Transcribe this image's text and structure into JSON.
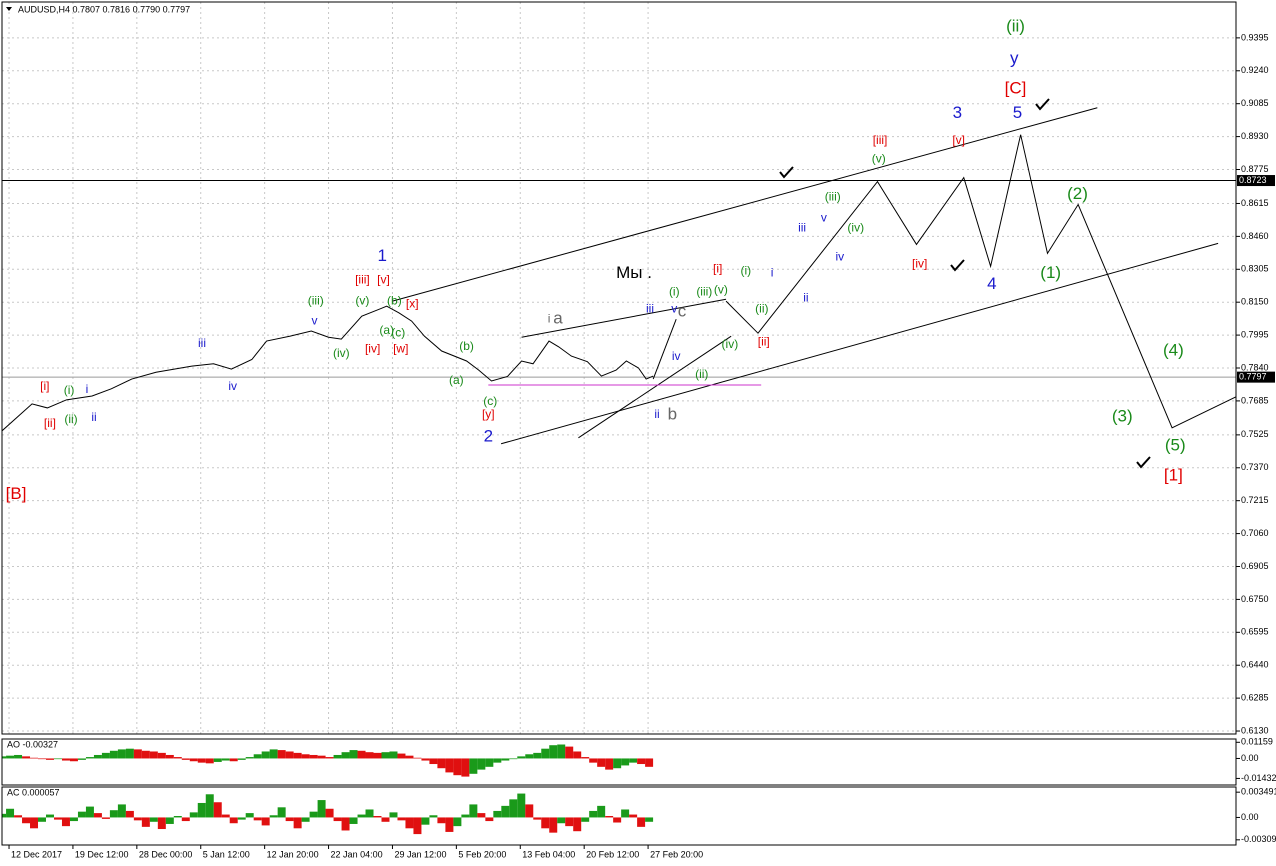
{
  "chart_data": [
    {
      "type": "line",
      "title": "AUDUSD,H4  0.7807 0.7816 0.7790 0.7797",
      "xlim": [
        -0.11,
        19.2
      ],
      "xticks": [
        {
          "value": 0,
          "label": "12 Dec 2017"
        },
        {
          "value": 1,
          "label": "19 Dec 12:00"
        },
        {
          "value": 2,
          "label": "28 Dec 00:00"
        },
        {
          "value": 3,
          "label": "5 Jan 12:00"
        },
        {
          "value": 4,
          "label": "12 Jan 20:00"
        },
        {
          "value": 5,
          "label": "22 Jan 04:00"
        },
        {
          "value": 6,
          "label": "29 Jan 12:00"
        },
        {
          "value": 7,
          "label": "5 Feb 20:00"
        },
        {
          "value": 8,
          "label": "13 Feb 04:00"
        },
        {
          "value": 9,
          "label": "20 Feb 12:00"
        },
        {
          "value": 10,
          "label": "27 Feb 20:00"
        }
      ],
      "ylim": [
        0.6116,
        0.9564
      ],
      "yticks": [
        0.9395,
        {
          "value": 0.924,
          "label": "0.9240"
        },
        0.9085,
        {
          "value": 0.893,
          "label": "0.8930"
        },
        0.8775,
        0.8615,
        {
          "value": 0.846,
          "label": "0.8460"
        },
        0.8305,
        {
          "value": 0.815,
          "label": "0.8150"
        },
        0.7995,
        {
          "value": 0.784,
          "label": "0.7840"
        },
        0.7685,
        0.7525,
        {
          "value": 0.737,
          "label": "0.7370"
        },
        0.7215,
        {
          "value": 0.706,
          "label": "0.7060"
        },
        0.6905,
        {
          "value": 0.675,
          "label": "0.6750"
        },
        0.6595,
        {
          "value": 0.644,
          "label": "0.6440"
        },
        0.6285,
        {
          "value": 0.613,
          "label": "0.6130"
        }
      ],
      "grid": true,
      "series": [
        {
          "color": "#000000",
          "x": [
            -0.11,
            0.36,
            0.6,
            0.9,
            1.3,
            1.6,
            1.92,
            2.3,
            2.86,
            3.2,
            3.48,
            3.8,
            4.03,
            4.4,
            4.73,
            5.0,
            5.2,
            5.52,
            5.91,
            6.1,
            6.3,
            6.5,
            6.77,
            7.16,
            7.35,
            7.55,
            7.8,
            8.02,
            8.2,
            8.45,
            8.6,
            8.8,
            9.05,
            9.27,
            9.5,
            9.66,
            9.85,
            9.97,
            10.08
          ],
          "values": [
            0.7544,
            0.7671,
            0.7652,
            0.769,
            0.7708,
            0.7742,
            0.7788,
            0.782,
            0.7849,
            0.786,
            0.7835,
            0.788,
            0.7967,
            0.799,
            0.8014,
            0.7985,
            0.7976,
            0.8084,
            0.8131,
            0.81,
            0.8061,
            0.799,
            0.792,
            0.7873,
            0.783,
            0.7779,
            0.78,
            0.7873,
            0.786,
            0.7967,
            0.794,
            0.7896,
            0.787,
            0.7802,
            0.783,
            0.7873,
            0.784,
            0.7788,
            0.7802
          ]
        },
        {
          "color": "#000000",
          "x": [
            10.08,
            10.44
          ],
          "values": [
            0.7788,
            0.807
          ]
        },
        {
          "color": "#000000",
          "x": [
            11.22,
            11.72,
            13.59,
            14.2,
            14.94,
            15.36,
            15.83,
            16.25,
            16.73,
            18.2,
            19.2
          ],
          "values": [
            0.8155,
            0.8004,
            0.8718,
            0.8422,
            0.8737,
            0.8319,
            0.8939,
            0.838,
            0.861,
            0.7558,
            0.7704
          ]
        },
        {
          "color": "#000000",
          "x": [
            6.0,
            17.03
          ],
          "values": [
            0.8155,
            0.9066
          ]
        },
        {
          "color": "#000000",
          "x": [
            7.7,
            18.92
          ],
          "values": [
            0.7483,
            0.8427
          ]
        },
        {
          "color": "#000000",
          "x": [
            8.02,
            11.22
          ],
          "values": [
            0.7985,
            0.8164
          ]
        },
        {
          "color": "#000000",
          "x": [
            8.91,
            11.3
          ],
          "values": [
            0.7511,
            0.799
          ]
        },
        {
          "color": "#cc33cc",
          "x": [
            7.5,
            11.77
          ],
          "values": [
            0.776,
            0.776
          ]
        }
      ],
      "hlines": [
        {
          "value": 0.8723,
          "color": "#000000"
        },
        {
          "value": 0.7797,
          "color": "#9a9a9a"
        }
      ],
      "annotations": [
        {
          "text": "[B]",
          "x": 0.11,
          "y": 0.7243,
          "color": "#e00000",
          "large": true
        },
        {
          "text": "[i]",
          "x": 0.56,
          "y": 0.7751,
          "color": "#e00000"
        },
        {
          "text": "[ii]",
          "x": 0.64,
          "y": 0.7577,
          "color": "#e00000"
        },
        {
          "text": "(i)",
          "x": 0.94,
          "y": 0.7732,
          "color": "#1a8a1a"
        },
        {
          "text": "(ii)",
          "x": 0.97,
          "y": 0.7596,
          "color": "#1a8a1a"
        },
        {
          "text": "i",
          "x": 1.22,
          "y": 0.7737,
          "color": "#1a1acc"
        },
        {
          "text": "ii",
          "x": 1.33,
          "y": 0.7605,
          "color": "#1a1acc"
        },
        {
          "text": "iii",
          "x": 3.02,
          "y": 0.7953,
          "color": "#1a1acc"
        },
        {
          "text": "iv",
          "x": 3.5,
          "y": 0.7751,
          "color": "#1a1acc"
        },
        {
          "text": "v",
          "x": 4.78,
          "y": 0.8061,
          "color": "#1a1acc"
        },
        {
          "text": "(iii)",
          "x": 4.8,
          "y": 0.8155,
          "color": "#1a8a1a"
        },
        {
          "text": "(iv)",
          "x": 5.2,
          "y": 0.7906,
          "color": "#1a8a1a"
        },
        {
          "text": "(v)",
          "x": 5.53,
          "y": 0.8155,
          "color": "#1a8a1a"
        },
        {
          "text": "1",
          "x": 5.84,
          "y": 0.8366,
          "color": "#1a1acc",
          "large": true
        },
        {
          "text": "[iii]",
          "x": 5.53,
          "y": 0.8253,
          "color": "#e00000"
        },
        {
          "text": "[v]",
          "x": 5.86,
          "y": 0.8253,
          "color": "#e00000"
        },
        {
          "text": "(a)",
          "x": 5.91,
          "y": 0.8014,
          "color": "#1a8a1a"
        },
        {
          "text": "(b)",
          "x": 6.03,
          "y": 0.8155,
          "color": "#1a8a1a"
        },
        {
          "text": "(c)",
          "x": 6.09,
          "y": 0.8004,
          "color": "#1a8a1a"
        },
        {
          "text": "[iv]",
          "x": 5.69,
          "y": 0.7929,
          "color": "#e00000"
        },
        {
          "text": "[w]",
          "x": 6.13,
          "y": 0.7929,
          "color": "#e00000"
        },
        {
          "text": "[x]",
          "x": 6.31,
          "y": 0.8141,
          "color": "#e00000"
        },
        {
          "text": "(b)",
          "x": 7.16,
          "y": 0.7939,
          "color": "#1a8a1a"
        },
        {
          "text": "(a)",
          "x": 7.0,
          "y": 0.7779,
          "color": "#1a8a1a"
        },
        {
          "text": "(c)",
          "x": 7.53,
          "y": 0.768,
          "color": "#1a8a1a"
        },
        {
          "text": "[y]",
          "x": 7.5,
          "y": 0.7619,
          "color": "#e00000"
        },
        {
          "text": "2",
          "x": 7.5,
          "y": 0.7516,
          "color": "#1a1acc",
          "large": true
        },
        {
          "text": "i",
          "x": 8.45,
          "y": 0.807,
          "color": "#666666"
        },
        {
          "text": "a",
          "x": 8.59,
          "y": 0.807,
          "color": "#666666",
          "large": true
        },
        {
          "text": "ii",
          "x": 10.14,
          "y": 0.7619,
          "color": "#1a1acc"
        },
        {
          "text": "b",
          "x": 10.38,
          "y": 0.7619,
          "color": "#666666",
          "large": true
        },
        {
          "text": "Мы .",
          "x": 9.78,
          "y": 0.8286,
          "color": "#000000",
          "large": true
        },
        {
          "text": "iii",
          "x": 10.03,
          "y": 0.8117,
          "color": "#1a1acc"
        },
        {
          "text": "v",
          "x": 10.41,
          "y": 0.8117,
          "color": "#1a1acc"
        },
        {
          "text": "c",
          "x": 10.53,
          "y": 0.8103,
          "color": "#666666",
          "large": true
        },
        {
          "text": "(i)",
          "x": 10.41,
          "y": 0.8197,
          "color": "#1a8a1a"
        },
        {
          "text": "(iii)",
          "x": 10.88,
          "y": 0.8197,
          "color": "#1a8a1a"
        },
        {
          "text": "(v)",
          "x": 11.14,
          "y": 0.8206,
          "color": "#1a8a1a"
        },
        {
          "text": "iv",
          "x": 10.44,
          "y": 0.7892,
          "color": "#1a1acc"
        },
        {
          "text": "(ii)",
          "x": 10.84,
          "y": 0.7807,
          "color": "#1a8a1a"
        },
        {
          "text": "(iv)",
          "x": 11.28,
          "y": 0.7948,
          "color": "#1a8a1a"
        },
        {
          "text": "[i]",
          "x": 11.09,
          "y": 0.8305,
          "color": "#e00000"
        },
        {
          "text": "(i)",
          "x": 11.53,
          "y": 0.8296,
          "color": "#1a8a1a"
        },
        {
          "text": "i",
          "x": 11.94,
          "y": 0.8286,
          "color": "#1a1acc"
        },
        {
          "text": "[ii]",
          "x": 11.81,
          "y": 0.7962,
          "color": "#e00000"
        },
        {
          "text": "(ii)",
          "x": 11.78,
          "y": 0.8117,
          "color": "#1a8a1a"
        },
        {
          "text": "ii",
          "x": 12.47,
          "y": 0.8169,
          "color": "#1a1acc"
        },
        {
          "text": "iii",
          "x": 12.41,
          "y": 0.8498,
          "color": "#1a1acc"
        },
        {
          "text": "v",
          "x": 12.75,
          "y": 0.8545,
          "color": "#1a1acc"
        },
        {
          "text": "(iii)",
          "x": 12.89,
          "y": 0.8643,
          "color": "#1a8a1a"
        },
        {
          "text": "(iv)",
          "x": 13.25,
          "y": 0.8498,
          "color": "#1a8a1a"
        },
        {
          "text": "iv",
          "x": 13.0,
          "y": 0.8361,
          "color": "#1a1acc"
        },
        {
          "text": "(v)",
          "x": 13.61,
          "y": 0.8822,
          "color": "#1a8a1a"
        },
        {
          "text": "[iii]",
          "x": 13.63,
          "y": 0.8911,
          "color": "#e00000"
        },
        {
          "text": "[iv]",
          "x": 14.25,
          "y": 0.8328,
          "color": "#e00000"
        },
        {
          "text": "[v]",
          "x": 14.86,
          "y": 0.8911,
          "color": "#e00000"
        },
        {
          "text": "3",
          "x": 14.84,
          "y": 0.9038,
          "color": "#1a1acc",
          "large": true
        },
        {
          "text": "4",
          "x": 15.38,
          "y": 0.8234,
          "color": "#1a1acc",
          "large": true
        },
        {
          "text": "5",
          "x": 15.78,
          "y": 0.9038,
          "color": "#1a1acc",
          "large": true
        },
        {
          "text": "[C]",
          "x": 15.75,
          "y": 0.9155,
          "color": "#e00000",
          "large": true
        },
        {
          "text": "y",
          "x": 15.73,
          "y": 0.9296,
          "color": "#1a1acc",
          "large": true
        },
        {
          "text": "(ii)",
          "x": 15.75,
          "y": 0.9447,
          "color": "#1a8a1a",
          "large": true
        },
        {
          "text": "(2)",
          "x": 16.72,
          "y": 0.8657,
          "color": "#1a8a1a",
          "large": true
        },
        {
          "text": "(1)",
          "x": 16.3,
          "y": 0.8286,
          "color": "#1a8a1a",
          "large": true
        },
        {
          "text": "(4)",
          "x": 18.22,
          "y": 0.792,
          "color": "#1a8a1a",
          "large": true
        },
        {
          "text": "(3)",
          "x": 17.42,
          "y": 0.761,
          "color": "#1a8a1a",
          "large": true
        },
        {
          "text": "(5)",
          "x": 18.25,
          "y": 0.7473,
          "color": "#1a8a1a",
          "large": true
        },
        {
          "text": "[1]",
          "x": 18.22,
          "y": 0.7332,
          "color": "#e00000",
          "large": true
        }
      ]
    },
    {
      "type": "bar",
      "title": "AO -0.00327",
      "x": [
        -0.109,
        0.016,
        0.141,
        0.266,
        0.391,
        0.516,
        0.641,
        0.766,
        0.891,
        1.016,
        1.141,
        1.266,
        1.391,
        1.516,
        1.641,
        1.766,
        1.891,
        2.016,
        2.141,
        2.266,
        2.391,
        2.516,
        2.641,
        2.766,
        2.891,
        3.016,
        3.141,
        3.266,
        3.391,
        3.516,
        3.641,
        3.766,
        3.891,
        4.016,
        4.141,
        4.266,
        4.391,
        4.516,
        4.641,
        4.766,
        4.891,
        5.016,
        5.141,
        5.266,
        5.391,
        5.516,
        5.641,
        5.766,
        5.891,
        6.016,
        6.141,
        6.266,
        6.391,
        6.516,
        6.641,
        6.766,
        6.891,
        7.016,
        7.141,
        7.266,
        7.391,
        7.516,
        7.641,
        7.766,
        7.891,
        8.016,
        8.141,
        8.266,
        8.391,
        8.516,
        8.641,
        8.766,
        8.891,
        9.016,
        9.141,
        9.266,
        9.391,
        9.516,
        9.641,
        9.766,
        9.891,
        10.016
      ],
      "values": [
        0.0015,
        0.002,
        0.0025,
        0.0015,
        0.0005,
        -0.0005,
        -0.001,
        -0.0005,
        -0.0015,
        -0.002,
        -0.001,
        0.001,
        0.0025,
        0.004,
        0.0055,
        0.0065,
        0.007,
        0.0065,
        0.0055,
        0.005,
        0.004,
        0.0025,
        0.001,
        -0.001,
        -0.002,
        -0.003,
        -0.0035,
        -0.0025,
        -0.0015,
        -0.002,
        -0.001,
        0.001,
        0.003,
        0.005,
        0.0065,
        0.006,
        0.005,
        0.004,
        0.003,
        0.0025,
        0.002,
        0.001,
        0.0025,
        0.0045,
        0.006,
        0.0055,
        0.0045,
        0.004,
        0.0045,
        0.005,
        0.0035,
        0.002,
        0.0005,
        -0.0015,
        -0.004,
        -0.007,
        -0.01,
        -0.012,
        -0.013,
        -0.011,
        -0.008,
        -0.006,
        -0.003,
        -0.0015,
        -0.0005,
        0.0015,
        0.003,
        0.004,
        0.007,
        0.0095,
        0.01,
        0.0085,
        0.005,
        0.001,
        -0.003,
        -0.006,
        -0.008,
        -0.007,
        -0.005,
        -0.003,
        -0.004,
        -0.006
      ],
      "ylim": [
        -0.01903,
        0.01395
      ],
      "yticks": [
        0.01159,
        {
          "value": 0,
          "label": "0.00"
        },
        -0.01432
      ],
      "up_color": "#1a9a1a",
      "down_color": "#e01010"
    },
    {
      "type": "bar",
      "title": "AC 0.000057",
      "x": [
        -0.109,
        0.016,
        0.141,
        0.266,
        0.391,
        0.516,
        0.641,
        0.766,
        0.891,
        1.016,
        1.141,
        1.266,
        1.391,
        1.516,
        1.641,
        1.766,
        1.891,
        2.016,
        2.141,
        2.266,
        2.391,
        2.516,
        2.641,
        2.766,
        2.891,
        3.016,
        3.141,
        3.266,
        3.391,
        3.516,
        3.641,
        3.766,
        3.891,
        4.016,
        4.141,
        4.266,
        4.391,
        4.516,
        4.641,
        4.766,
        4.891,
        5.016,
        5.141,
        5.266,
        5.391,
        5.516,
        5.641,
        5.766,
        5.891,
        6.016,
        6.141,
        6.266,
        6.391,
        6.516,
        6.641,
        6.766,
        6.891,
        7.016,
        7.141,
        7.266,
        7.391,
        7.516,
        7.641,
        7.766,
        7.891,
        8.016,
        8.141,
        8.266,
        8.391,
        8.516,
        8.641,
        8.766,
        8.891,
        9.016,
        9.141,
        9.266,
        9.391,
        9.516,
        9.641,
        9.766,
        9.891,
        10.016
      ],
      "values": [
        0.0005,
        0.0012,
        0.0003,
        -0.0008,
        -0.0015,
        -0.0006,
        0.0004,
        -0.0003,
        -0.0012,
        -0.0005,
        0.0008,
        0.0015,
        0.0006,
        -0.0002,
        0.001,
        0.0018,
        0.0009,
        -0.0004,
        -0.0013,
        -0.0006,
        -0.0016,
        -0.0009,
        0.0002,
        -0.0005,
        0.0007,
        0.002,
        0.0032,
        0.0021,
        0.0004,
        -0.0008,
        -0.0003,
        0.0006,
        -0.0004,
        -0.0011,
        0.0003,
        0.0014,
        -0.0005,
        -0.0015,
        -0.0006,
        0.0008,
        0.0024,
        0.0012,
        -0.0005,
        -0.0018,
        -0.0009,
        0.0004,
        0.0011,
        0.0002,
        -0.0006,
        0.0007,
        -0.0004,
        -0.0015,
        -0.0023,
        -0.001,
        0.0003,
        -0.0008,
        -0.002,
        -0.0012,
        0.0004,
        0.0018,
        0.0006,
        -0.0005,
        0.0009,
        0.0016,
        0.0025,
        0.0033,
        0.0018,
        -0.0003,
        -0.0015,
        -0.0021,
        -0.0008,
        -0.0012,
        -0.0019,
        -0.0006,
        0.0009,
        0.0016,
        0.0002,
        -0.0007,
        0.0011,
        0.0004,
        -0.0013,
        -0.0006
      ],
      "ylim": [
        -0.003806,
        0.004206
      ],
      "yticks": [
        0.003491,
        {
          "value": 0,
          "label": "0.00"
        },
        -0.00309
      ],
      "up_color": "#1a9a1a",
      "down_color": "#e01010"
    }
  ]
}
